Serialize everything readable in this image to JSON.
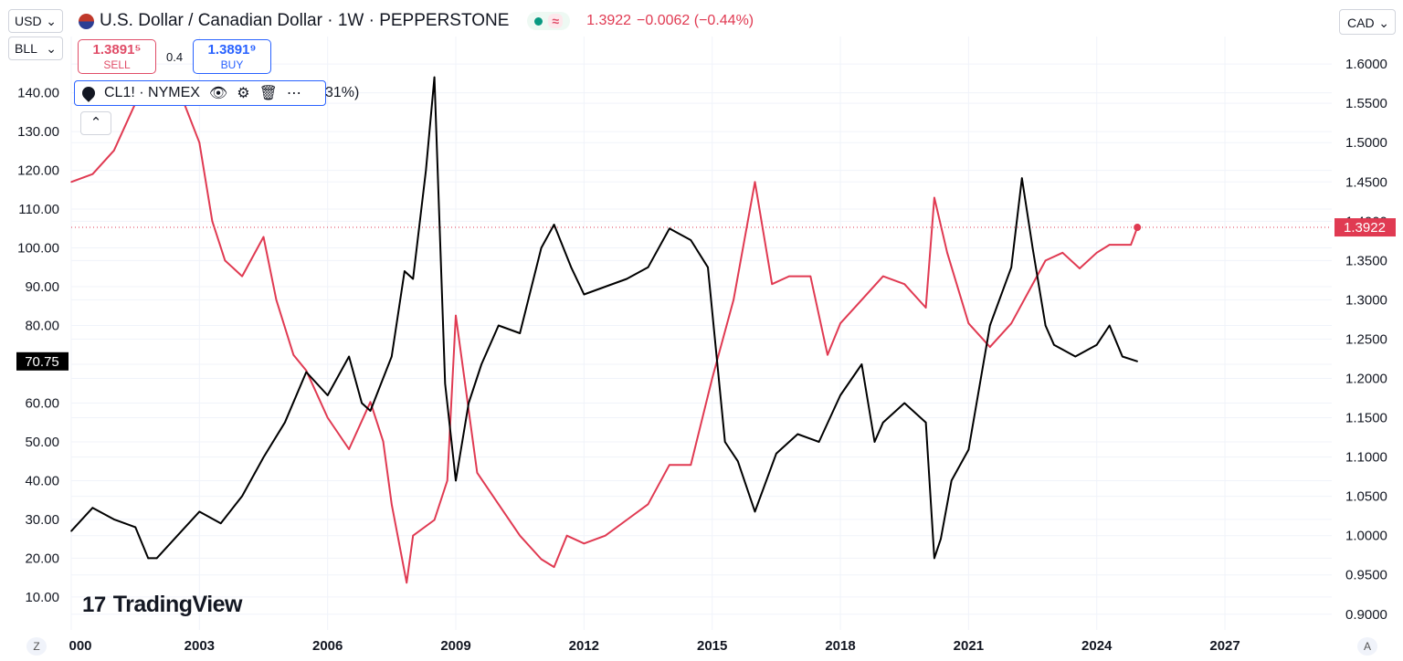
{
  "header": {
    "title": "U.S. Dollar / Canadian Dollar · 1W · PEPPERSTONE",
    "last": "1.3922",
    "change": "−0.0062 (−0.44%)",
    "wave_symbol": "≈"
  },
  "selectors": {
    "left_top": "USD",
    "left_bottom": "BLL",
    "right": "CAD"
  },
  "trade": {
    "sell_price": "1.3891⁵",
    "sell_label": "SELL",
    "spread": "0.4",
    "buy_price": "1.3891⁹",
    "buy_label": "BUY"
  },
  "overlay": {
    "symbol": "CL1! · NYMEX",
    "pct_fragment": "31%)"
  },
  "branding": {
    "logo": "TradingView",
    "logo_mark": "17"
  },
  "bottom_buttons": {
    "left": "Z",
    "right": "A"
  },
  "colors": {
    "usdcad": "#e03a52",
    "crude": "#000000",
    "grid": "#f0f3fa",
    "price_line": "#e03a52"
  },
  "chart_data": {
    "type": "line",
    "x_ticks": [
      "000",
      "2003",
      "2006",
      "2009",
      "2012",
      "2015",
      "2018",
      "2021",
      "2024",
      "2027"
    ],
    "xlim": [
      2000,
      2029.5
    ],
    "left_axis": {
      "ticks": [
        "10.00",
        "20.00",
        "30.00",
        "40.00",
        "50.00",
        "60.00",
        "70.00",
        "80.00",
        "90.00",
        "100.00",
        "110.00",
        "120.00",
        "130.00",
        "140.00"
      ],
      "ylim": [
        1.5,
        154.5
      ]
    },
    "right_axis": {
      "ticks": [
        "0.9000",
        "0.9500",
        "1.0000",
        "1.0500",
        "1.1000",
        "1.1500",
        "1.2000",
        "1.2500",
        "1.3000",
        "1.3500",
        "1.4000",
        "1.4500",
        "1.5000",
        "1.5500",
        "1.6000"
      ],
      "ylim": [
        0.88,
        1.635
      ]
    },
    "last_labels": {
      "left": "70.75",
      "right": "1.3922"
    },
    "series": [
      {
        "axis": "right",
        "x": [
          2000.0,
          2000.5,
          2001.0,
          2001.5,
          2002.0,
          2002.5,
          2003.0,
          2003.3,
          2003.6,
          2004.0,
          2004.5,
          2004.8,
          2005.2,
          2005.5,
          2006.0,
          2006.5,
          2007.0,
          2007.3,
          2007.5,
          2007.85,
          2008.0,
          2008.5,
          2008.8,
          2009.0,
          2009.2,
          2009.5,
          2010.0,
          2010.5,
          2011.0,
          2011.3,
          2011.6,
          2012.0,
          2012.5,
          2013.0,
          2013.5,
          2014.0,
          2014.5,
          2015.0,
          2015.5,
          2016.0,
          2016.4,
          2016.8,
          2017.3,
          2017.7,
          2018.0,
          2018.5,
          2019.0,
          2019.5,
          2020.0,
          2020.2,
          2020.5,
          2021.0,
          2021.5,
          2022.0,
          2022.8,
          2023.2,
          2023.6,
          2024.0,
          2024.3,
          2024.8,
          2024.95
        ],
        "y": [
          1.45,
          1.46,
          1.49,
          1.55,
          1.57,
          1.57,
          1.5,
          1.4,
          1.35,
          1.33,
          1.38,
          1.3,
          1.23,
          1.21,
          1.15,
          1.11,
          1.17,
          1.12,
          1.04,
          0.94,
          1.0,
          1.02,
          1.07,
          1.28,
          1.2,
          1.08,
          1.04,
          1.0,
          0.97,
          0.96,
          1.0,
          0.99,
          1.0,
          1.02,
          1.04,
          1.09,
          1.09,
          1.2,
          1.3,
          1.45,
          1.32,
          1.33,
          1.33,
          1.23,
          1.27,
          1.3,
          1.33,
          1.32,
          1.29,
          1.43,
          1.36,
          1.27,
          1.24,
          1.27,
          1.35,
          1.36,
          1.34,
          1.36,
          1.37,
          1.37,
          1.3922
        ]
      },
      {
        "axis": "left",
        "x": [
          2000.0,
          2000.5,
          2001.0,
          2001.5,
          2001.8,
          2002.0,
          2002.5,
          2003.0,
          2003.5,
          2004.0,
          2004.5,
          2005.0,
          2005.5,
          2006.0,
          2006.5,
          2006.8,
          2007.0,
          2007.5,
          2007.8,
          2008.0,
          2008.3,
          2008.5,
          2008.75,
          2009.0,
          2009.3,
          2009.6,
          2010.0,
          2010.5,
          2011.0,
          2011.3,
          2011.7,
          2012.0,
          2012.5,
          2013.0,
          2013.5,
          2014.0,
          2014.5,
          2014.9,
          2015.3,
          2015.6,
          2016.0,
          2016.5,
          2017.0,
          2017.5,
          2018.0,
          2018.5,
          2018.8,
          2019.0,
          2019.5,
          2020.0,
          2020.2,
          2020.35,
          2020.6,
          2021.0,
          2021.5,
          2022.0,
          2022.25,
          2022.5,
          2022.8,
          2023.0,
          2023.5,
          2024.0,
          2024.3,
          2024.6,
          2024.95
        ],
        "y": [
          27,
          33,
          30,
          28,
          20,
          20,
          26,
          32,
          29,
          36,
          46,
          55,
          68,
          62,
          72,
          60,
          58,
          72,
          94,
          92,
          120,
          144,
          65,
          40,
          60,
          70,
          80,
          78,
          100,
          106,
          95,
          88,
          90,
          92,
          95,
          105,
          102,
          95,
          50,
          45,
          32,
          47,
          52,
          50,
          62,
          70,
          50,
          55,
          60,
          55,
          20,
          25,
          40,
          48,
          80,
          95,
          118,
          100,
          80,
          75,
          72,
          75,
          80,
          72,
          70.75
        ]
      }
    ]
  }
}
